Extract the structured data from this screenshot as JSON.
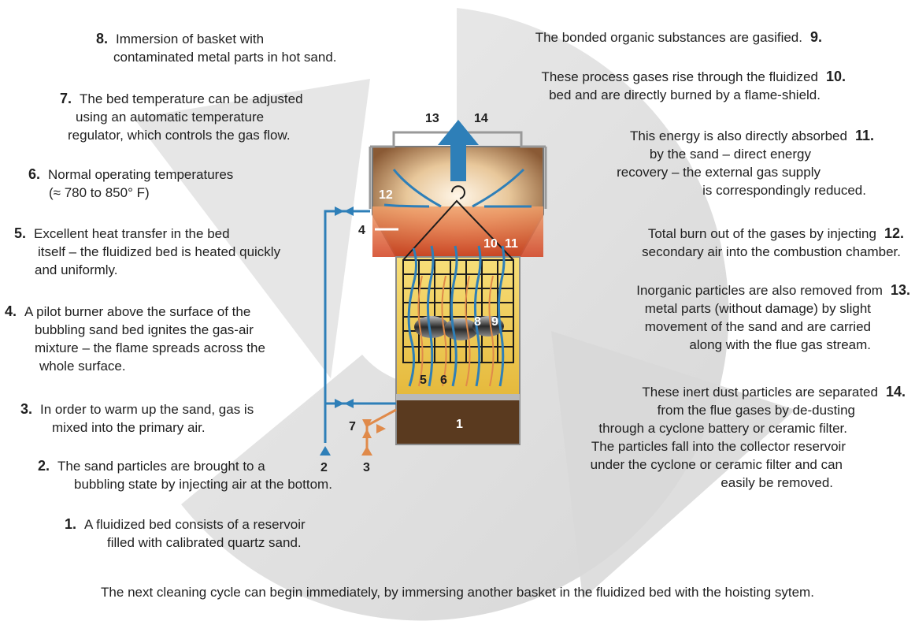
{
  "steps_left": [
    {
      "num": "8.",
      "lines": [
        "Immersion of basket with",
        "contaminated metal parts in hot sand."
      ]
    },
    {
      "num": "7.",
      "lines": [
        "The bed temperature can be adjusted",
        "using an automatic temperature",
        "regulator, which controls the gas flow."
      ]
    },
    {
      "num": "6.",
      "lines": [
        "Normal operating temperatures",
        "(≈ 780 to 850° F)"
      ]
    },
    {
      "num": "5.",
      "lines": [
        "Excellent heat transfer in the bed",
        "itself – the fluidized bed is heated quickly",
        "and uniformly."
      ]
    },
    {
      "num": "4.",
      "lines": [
        "A pilot burner above the surface of the",
        "bubbling sand bed ignites the gas-air",
        "mixture – the flame spreads across the",
        "whole surface."
      ]
    },
    {
      "num": "3.",
      "lines": [
        "In order to warm up the sand, gas is",
        "mixed into the primary air."
      ]
    },
    {
      "num": "2.",
      "lines": [
        "The sand particles are brought to a",
        "bubbling state by injecting air at the bottom."
      ]
    },
    {
      "num": "1.",
      "lines": [
        "A fluidized bed consists of a reservoir",
        "filled with calibrated quartz sand."
      ]
    }
  ],
  "steps_right": [
    {
      "num": "9.",
      "lines": [
        "The bonded organic substances are gasified."
      ]
    },
    {
      "num": "10.",
      "lines": [
        "These process gases rise through the fluidized",
        "bed and are directly burned by a flame-shield."
      ]
    },
    {
      "num": "11.",
      "lines": [
        "This energy is also directly absorbed",
        "by the sand – direct energy",
        "recovery – the external gas supply",
        "is correspondingly reduced."
      ]
    },
    {
      "num": "12.",
      "lines": [
        "Total burn out of the gases by injecting",
        "secondary air into the combustion chamber."
      ]
    },
    {
      "num": "13.",
      "lines": [
        "Inorganic particles are also removed from",
        "metal parts (without damage) by slight",
        "movement of the sand and are carried",
        "along with the flue gas stream."
      ]
    },
    {
      "num": "14.",
      "lines": [
        "These inert dust particles are separated",
        "from the flue gases by de-dusting",
        "through a cyclone battery or ceramic filter.",
        "The particles fall into the collector reservoir",
        "under the cyclone or ceramic filter and can",
        "easily be removed."
      ]
    }
  ],
  "footer": "The next cleaning cycle can begin immediately, by immersing another basket in the fluidized bed with the hoisting sytem.",
  "diagram_labels": {
    "l13": "13",
    "l14": "14",
    "l12": "12",
    "l4": "4",
    "l10": "10",
    "l11": "11",
    "l8": "8",
    "l9": "9",
    "l5": "5",
    "l6": "6",
    "l1": "1",
    "l7": "7",
    "l2": "2",
    "l3": "3"
  },
  "colors": {
    "sand_yellow": "#f3d35a",
    "sand_brown": "#5a3a1f",
    "air_blue": "#2e7fb8",
    "gas_orange": "#e08a4a",
    "flame_red": "#d9472b",
    "background_arrow": "#dcdcdc"
  }
}
